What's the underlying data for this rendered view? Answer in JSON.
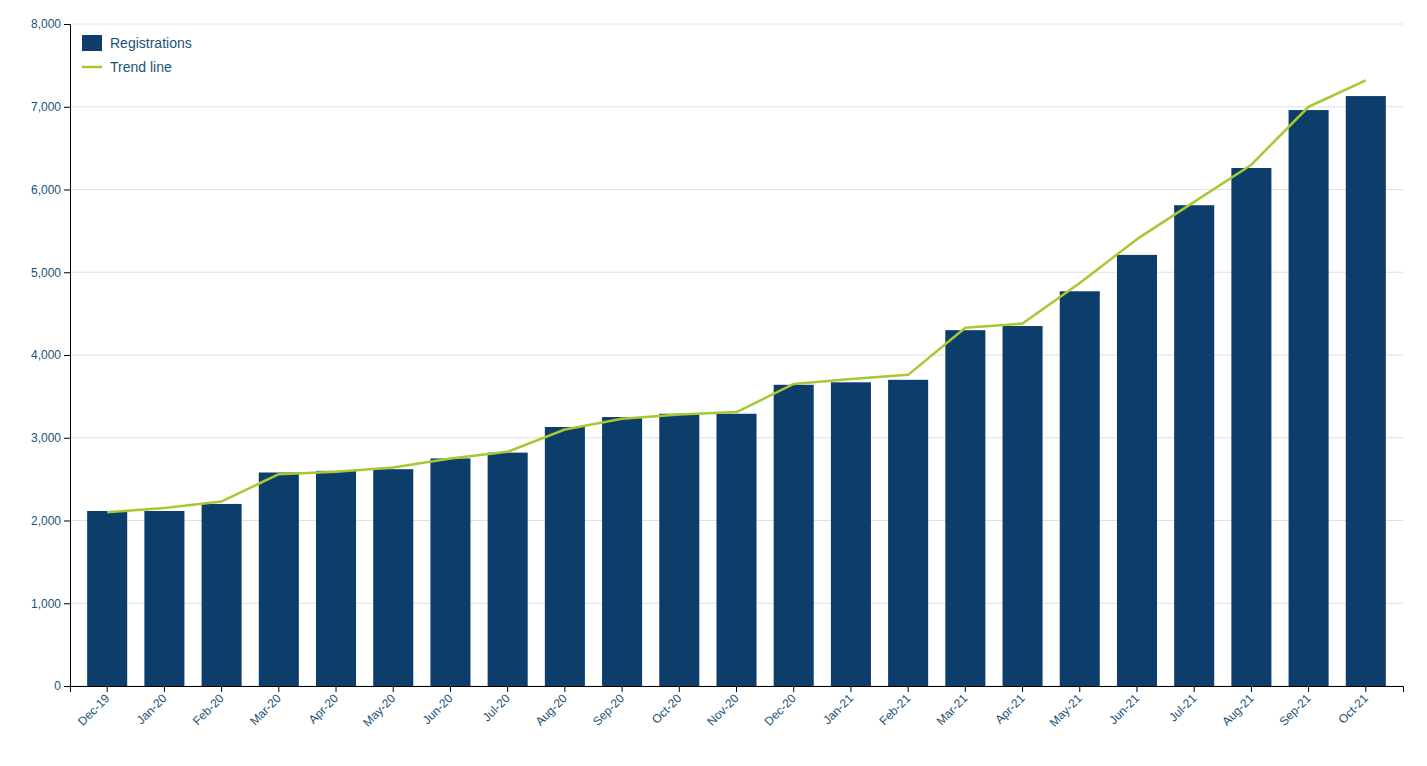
{
  "chart_data": {
    "type": "bar",
    "categories": [
      "Dec-19",
      "Jan-20",
      "Feb-20",
      "Mar-20",
      "Apr-20",
      "May-20",
      "Jun-20",
      "Jul-20",
      "Aug-20",
      "Sep-20",
      "Oct-20",
      "Nov-20",
      "Dec-20",
      "Jan-21",
      "Feb-21",
      "Mar-21",
      "Apr-21",
      "May-21",
      "Jun-21",
      "Jul-21",
      "Aug-21",
      "Sep-21",
      "Oct-21"
    ],
    "series": [
      {
        "name": "Registrations",
        "type": "bar",
        "color": "#0d3d6b",
        "values": [
          2115,
          2115,
          2200,
          2580,
          2600,
          2620,
          2750,
          2820,
          3130,
          3250,
          3290,
          3290,
          3640,
          3670,
          3700,
          4300,
          4350,
          4770,
          5210,
          5810,
          6260,
          6960,
          7129
        ]
      },
      {
        "name": "Trend line",
        "type": "line",
        "color": "#a8c832",
        "values": [
          2100,
          2150,
          2230,
          2560,
          2590,
          2640,
          2750,
          2830,
          3100,
          3230,
          3280,
          3310,
          3650,
          3710,
          3760,
          4330,
          4380,
          4870,
          5400,
          5850,
          6300,
          7000,
          7320
        ]
      }
    ],
    "ylim": [
      0,
      8000
    ],
    "yticks": [
      0,
      {
        "value": 1000,
        "label": "1,000"
      },
      {
        "value": 2000,
        "label": "2,000"
      },
      {
        "value": 3000,
        "label": "3,000"
      },
      {
        "value": 4000,
        "label": "4,000"
      },
      {
        "value": 5000,
        "label": "5,000"
      },
      {
        "value": 6000,
        "label": "6,000"
      },
      {
        "value": 7000,
        "label": "7,000"
      },
      {
        "value": 8000,
        "label": "8,000"
      }
    ],
    "grid": true,
    "legend": "upper left"
  }
}
